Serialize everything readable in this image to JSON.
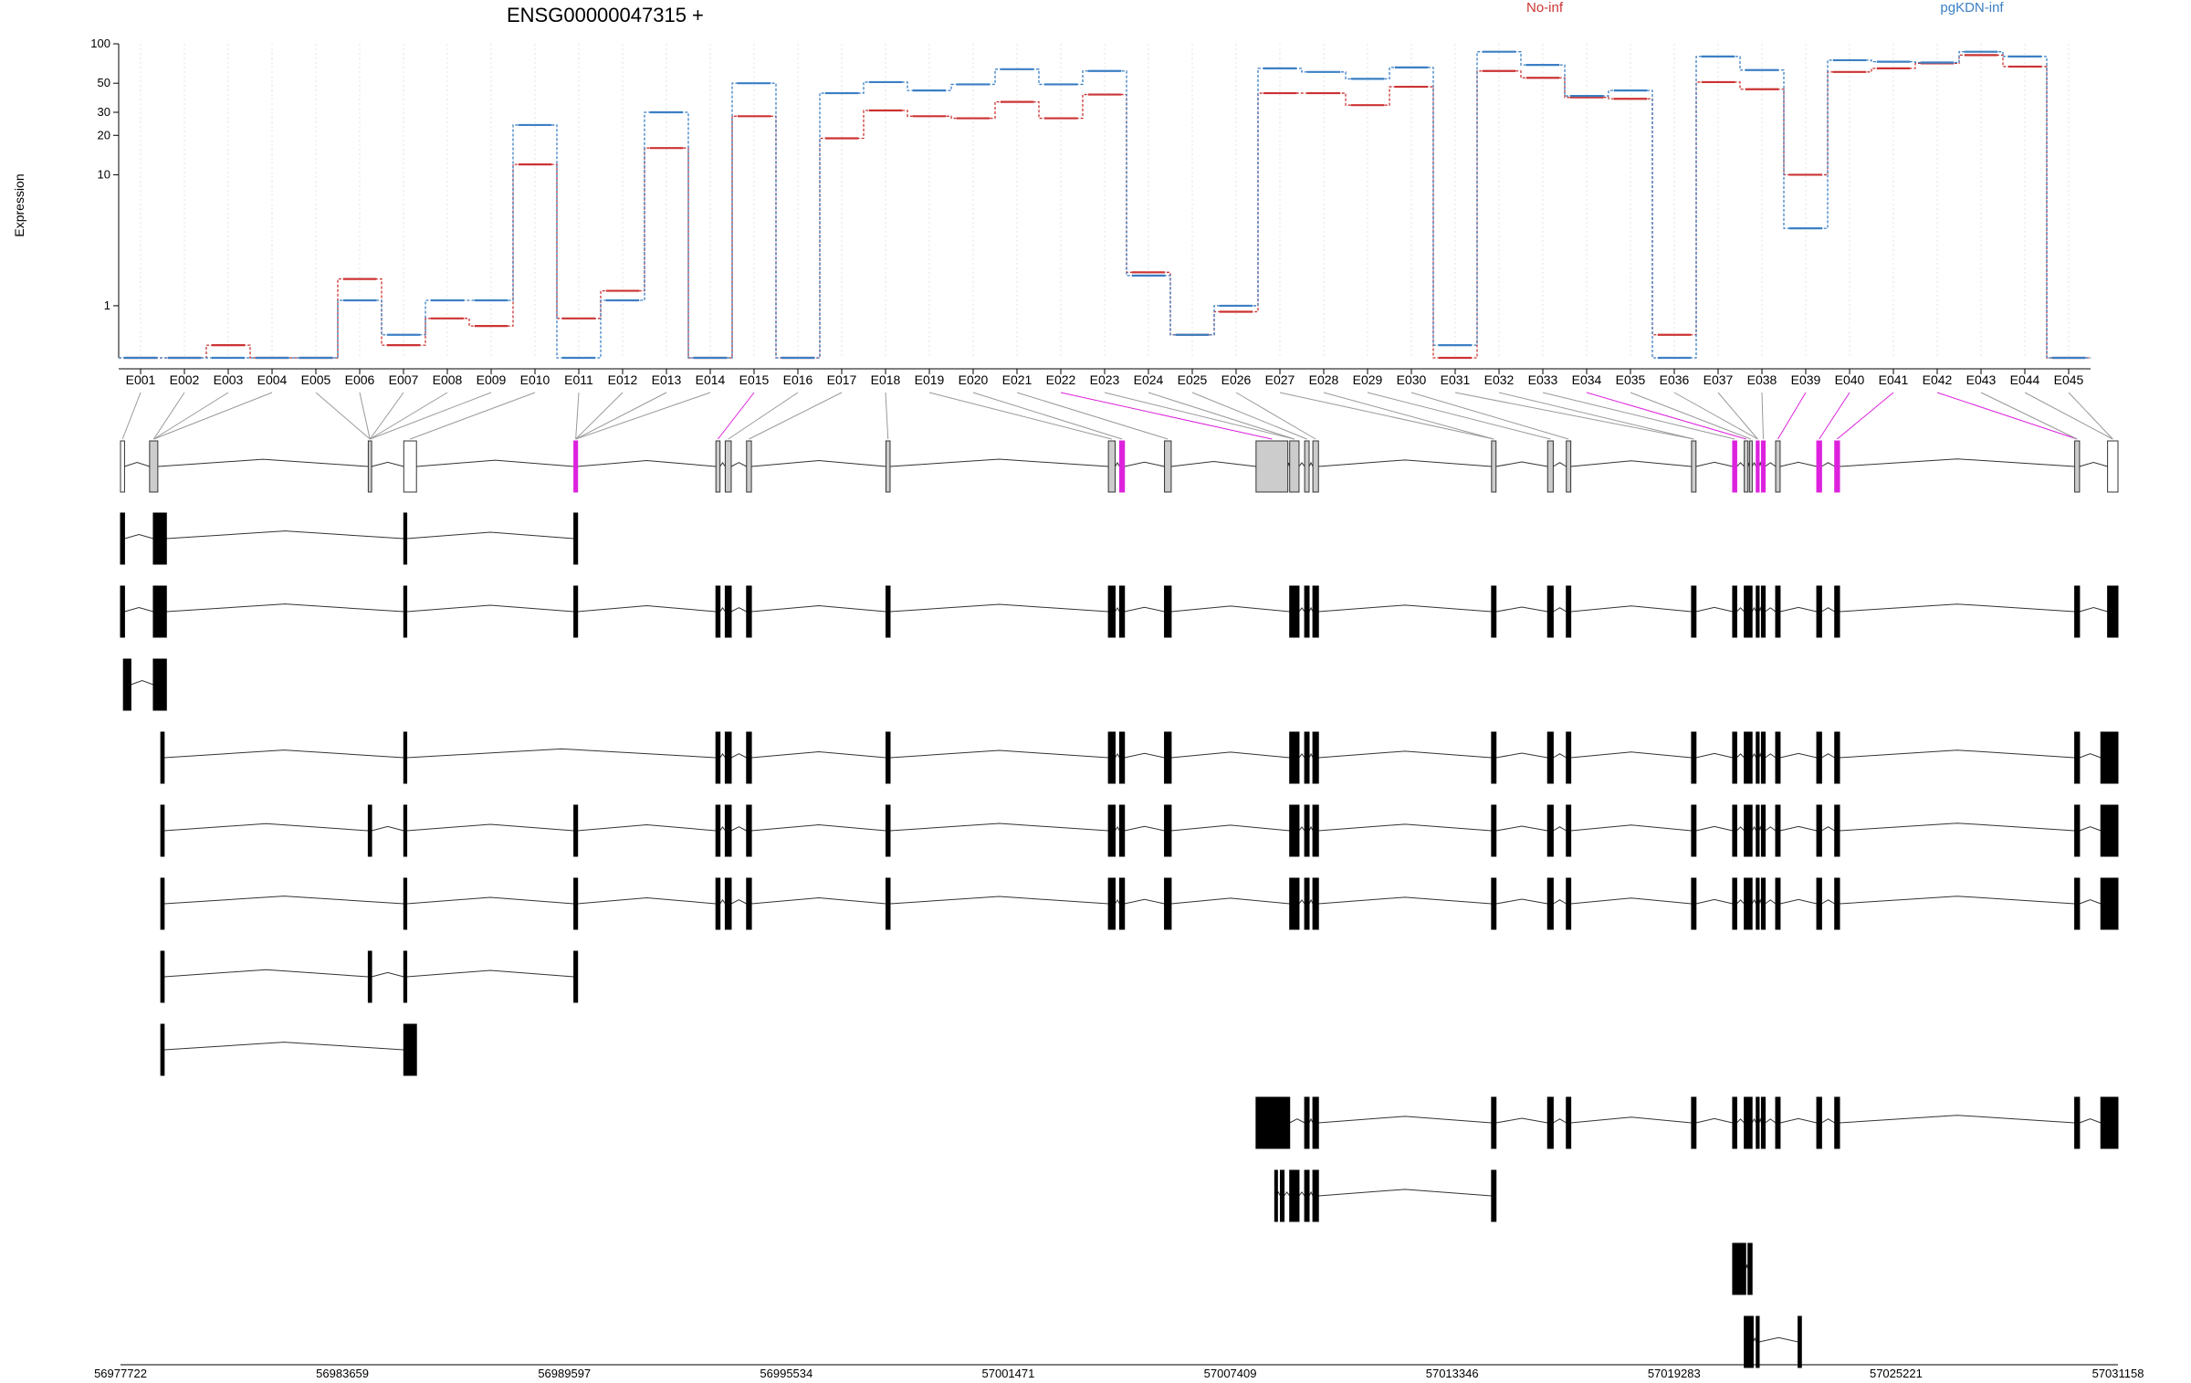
{
  "chart_data": {
    "type": "line",
    "title": "ENSG00000047315 +",
    "ylabel": "Expression",
    "yscale": "log",
    "ylim": [
      0.4,
      100
    ],
    "yticks": [
      1,
      10,
      20,
      30,
      50,
      100
    ],
    "grid": "vertical dotted",
    "categories": [
      "E001",
      "E002",
      "E003",
      "E004",
      "E005",
      "E006",
      "E007",
      "E008",
      "E009",
      "E010",
      "E011",
      "E012",
      "E013",
      "E014",
      "E015",
      "E016",
      "E017",
      "E018",
      "E019",
      "E020",
      "E021",
      "E022",
      "E023",
      "E024",
      "E025",
      "E026",
      "E027",
      "E028",
      "E029",
      "E030",
      "E031",
      "E032",
      "E033",
      "E034",
      "E035",
      "E036",
      "E037",
      "E038",
      "E039",
      "E040",
      "E041",
      "E042",
      "E043",
      "E044",
      "E045"
    ],
    "series": [
      {
        "name": "No-inf",
        "color": "#cc3333",
        "values": [
          0.4,
          0.4,
          0.5,
          0.4,
          0.4,
          1.6,
          0.5,
          0.8,
          0.7,
          12,
          0.8,
          1.3,
          16,
          0.4,
          28,
          0.4,
          19,
          31,
          28,
          27,
          36,
          27,
          41,
          1.8,
          0.6,
          0.9,
          42,
          42,
          34,
          47,
          0.4,
          62,
          55,
          39,
          38,
          0.6,
          51,
          45,
          10,
          61,
          65,
          71,
          82,
          67,
          0.4
        ]
      },
      {
        "name": "pgKDN-inf",
        "color": "#3b7fc4",
        "values": [
          0.4,
          0.4,
          0.4,
          0.4,
          0.4,
          1.1,
          0.6,
          1.1,
          1.1,
          24,
          0.4,
          1.1,
          30,
          0.4,
          50,
          0.4,
          42,
          51,
          44,
          49,
          64,
          49,
          62,
          1.7,
          0.6,
          1.0,
          65,
          61,
          54,
          66,
          0.5,
          87,
          69,
          40,
          44,
          0.4,
          80,
          63,
          3.9,
          75,
          73,
          72,
          87,
          80,
          0.4
        ]
      }
    ],
    "highlighted_exons": [
      "E015",
      "E022",
      "E034",
      "E039",
      "E040",
      "E041",
      "E042"
    ],
    "genomic_axis": {
      "ticks": [
        "56977722",
        "56983659",
        "56989597",
        "56995534",
        "57001471",
        "57007409",
        "57013346",
        "57019283",
        "57025221",
        "57031158"
      ]
    },
    "gene_model": {
      "exons": [
        [
          56977722,
          56977830
        ],
        [
          56978500,
          56978720
        ],
        [
          56984350,
          56984440
        ],
        [
          56985300,
          56985640
        ],
        [
          56989850,
          56989950
        ],
        [
          56993650,
          56993760
        ],
        [
          56993900,
          56994060
        ],
        [
          56994470,
          56994600
        ],
        [
          56998200,
          56998310
        ],
        [
          57004150,
          57004330
        ],
        [
          57004450,
          57004580
        ],
        [
          57005650,
          57005830
        ],
        [
          57008100,
          57008950
        ],
        [
          57009000,
          57009250
        ],
        [
          57009400,
          57009520
        ],
        [
          57009620,
          57009770
        ],
        [
          57014400,
          57014520
        ],
        [
          57015900,
          57016050
        ],
        [
          57016400,
          57016520
        ],
        [
          57019750,
          57019870
        ],
        [
          57020850,
          57020960
        ],
        [
          57021160,
          57021260
        ],
        [
          57021300,
          57021370
        ],
        [
          57021480,
          57021560
        ],
        [
          57021620,
          57021720
        ],
        [
          57022000,
          57022120
        ],
        [
          57023100,
          57023230
        ],
        [
          57023580,
          57023710
        ],
        [
          57030000,
          57030130
        ],
        [
          57030880,
          57031158
        ]
      ],
      "highlighted": [
        4,
        10,
        20,
        23,
        24,
        26,
        27
      ],
      "transcripts": [
        [
          [
            56977722,
            56977830
          ],
          [
            56978600,
            56978950
          ],
          [
            56985300,
            56985380
          ],
          [
            56989850,
            56989950
          ]
        ],
        [
          [
            56977722,
            56977830
          ],
          [
            56978600,
            56978950
          ],
          [
            56985300,
            56985380
          ],
          [
            56989850,
            56989950
          ],
          [
            56993650,
            56993760
          ],
          [
            56993900,
            56994060
          ],
          [
            56994470,
            56994600
          ],
          [
            56998200,
            56998310
          ],
          [
            57004150,
            57004330
          ],
          [
            57004450,
            57004580
          ],
          [
            57005650,
            57005830
          ],
          [
            57009000,
            57009250
          ],
          [
            57009400,
            57009520
          ],
          [
            57009620,
            57009770
          ],
          [
            57014400,
            57014520
          ],
          [
            57015900,
            57016050
          ],
          [
            57016400,
            57016520
          ],
          [
            57019750,
            57019870
          ],
          [
            57020850,
            57020960
          ],
          [
            57021160,
            57021370
          ],
          [
            57021480,
            57021560
          ],
          [
            57021620,
            57021720
          ],
          [
            57022000,
            57022120
          ],
          [
            57023100,
            57023230
          ],
          [
            57023580,
            57023710
          ],
          [
            57030000,
            57030130
          ],
          [
            57030880,
            57031158
          ]
        ],
        [
          [
            56977800,
            56978000
          ],
          [
            56978600,
            56978950
          ]
        ],
        [
          [
            56978800,
            56978890
          ],
          [
            56985300,
            56985380
          ],
          [
            56993650,
            56993760
          ],
          [
            56993900,
            56994060
          ],
          [
            56994470,
            56994600
          ],
          [
            56998200,
            56998310
          ],
          [
            57004150,
            57004330
          ],
          [
            57004450,
            57004580
          ],
          [
            57005650,
            57005830
          ],
          [
            57009000,
            57009250
          ],
          [
            57009400,
            57009520
          ],
          [
            57009620,
            57009770
          ],
          [
            57014400,
            57014520
          ],
          [
            57015900,
            57016050
          ],
          [
            57016400,
            57016520
          ],
          [
            57019750,
            57019870
          ],
          [
            57020850,
            57020960
          ],
          [
            57021160,
            57021370
          ],
          [
            57021480,
            57021560
          ],
          [
            57021620,
            57021720
          ],
          [
            57022000,
            57022120
          ],
          [
            57023100,
            57023230
          ],
          [
            57023580,
            57023710
          ],
          [
            57030000,
            57030130
          ],
          [
            57030700,
            57031158
          ]
        ],
        [
          [
            56978800,
            56978890
          ],
          [
            56984350,
            56984440
          ],
          [
            56985300,
            56985380
          ],
          [
            56989850,
            56989950
          ],
          [
            56993650,
            56993760
          ],
          [
            56993900,
            56994060
          ],
          [
            56994470,
            56994600
          ],
          [
            56998200,
            56998310
          ],
          [
            57004150,
            57004330
          ],
          [
            57004450,
            57004580
          ],
          [
            57005650,
            57005830
          ],
          [
            57009000,
            57009250
          ],
          [
            57009400,
            57009520
          ],
          [
            57009620,
            57009770
          ],
          [
            57014400,
            57014520
          ],
          [
            57015900,
            57016050
          ],
          [
            57016400,
            57016520
          ],
          [
            57019750,
            57019870
          ],
          [
            57020850,
            57020960
          ],
          [
            57021160,
            57021370
          ],
          [
            57021480,
            57021560
          ],
          [
            57021620,
            57021720
          ],
          [
            57022000,
            57022120
          ],
          [
            57023100,
            57023230
          ],
          [
            57023580,
            57023710
          ],
          [
            57030000,
            57030130
          ],
          [
            57030700,
            57031158
          ]
        ],
        [
          [
            56978800,
            56978890
          ],
          [
            56985300,
            56985380
          ],
          [
            56989850,
            56989950
          ],
          [
            56993650,
            56993760
          ],
          [
            56993900,
            56994060
          ],
          [
            56994470,
            56994600
          ],
          [
            56998200,
            56998310
          ],
          [
            57004150,
            57004330
          ],
          [
            57004450,
            57004580
          ],
          [
            57005650,
            57005830
          ],
          [
            57009000,
            57009250
          ],
          [
            57009400,
            57009520
          ],
          [
            57009620,
            57009770
          ],
          [
            57014400,
            57014520
          ],
          [
            57015900,
            57016050
          ],
          [
            57016400,
            57016520
          ],
          [
            57019750,
            57019870
          ],
          [
            57020850,
            57020960
          ],
          [
            57021160,
            57021370
          ],
          [
            57021480,
            57021560
          ],
          [
            57021620,
            57021720
          ],
          [
            57022000,
            57022120
          ],
          [
            57023100,
            57023230
          ],
          [
            57023580,
            57023710
          ],
          [
            57030000,
            57030130
          ],
          [
            57030700,
            57031158
          ]
        ],
        [
          [
            56978800,
            56978890
          ],
          [
            56984350,
            56984440
          ],
          [
            56985300,
            56985380
          ],
          [
            56989850,
            56989950
          ]
        ],
        [
          [
            56978800,
            56978890
          ],
          [
            56985300,
            56985640
          ]
        ],
        [
          [
            57008100,
            57009000
          ],
          [
            57009400,
            57009520
          ],
          [
            57009620,
            57009770
          ],
          [
            57014400,
            57014520
          ],
          [
            57015900,
            57016050
          ],
          [
            57016400,
            57016520
          ],
          [
            57019750,
            57019870
          ],
          [
            57020850,
            57020960
          ],
          [
            57021160,
            57021370
          ],
          [
            57021480,
            57021560
          ],
          [
            57021620,
            57021720
          ],
          [
            57022000,
            57022120
          ],
          [
            57023100,
            57023230
          ],
          [
            57023580,
            57023710
          ],
          [
            57030000,
            57030130
          ],
          [
            57030700,
            57031158
          ]
        ],
        [
          [
            57008600,
            57008640
          ],
          [
            57008750,
            57008850
          ],
          [
            57009000,
            57009250
          ],
          [
            57009400,
            57009520
          ],
          [
            57009620,
            57009770
          ],
          [
            57014400,
            57014520
          ]
        ],
        [
          [
            57020850,
            57021200
          ],
          [
            57021260,
            57021370
          ]
        ],
        [
          [
            57021160,
            57021400
          ],
          [
            57021480,
            57021560
          ],
          [
            57022600,
            57022690
          ]
        ]
      ]
    }
  }
}
